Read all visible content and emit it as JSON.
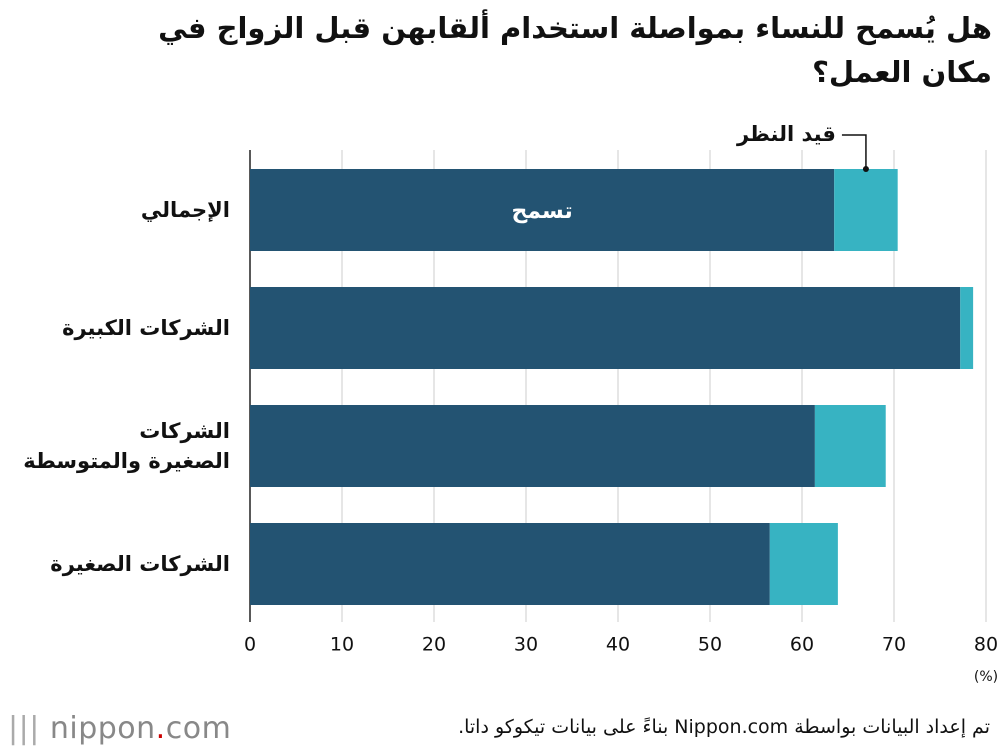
{
  "chart_data": {
    "type": "stacked-bar-horizontal",
    "title": "هل يُسمح للنساء بمواصلة استخدام ألقابهن قبل الزواج في مكان العمل؟",
    "categories": [
      "الإجمالي",
      "الشركات الكبيرة",
      "الشركات\nالصغيرة والمتوسطة",
      "الشركات الصغيرة"
    ],
    "series": [
      {
        "name": "تسمح",
        "color": "#235372",
        "values": [
          63.5,
          77.2,
          61.4,
          56.5
        ]
      },
      {
        "name": "قيد النظر",
        "color": "#37b3c2",
        "values": [
          6.9,
          1.4,
          7.7,
          7.4
        ]
      }
    ],
    "xlim": [
      0,
      80
    ],
    "xticks": [
      0,
      10,
      20,
      30,
      40,
      50,
      60,
      70,
      80
    ],
    "x_unit": "(%)",
    "grid": true,
    "source": "تم إعداد البيانات بواسطة Nippon.com بناءً على بيانات تيكوكو داتا."
  }
}
